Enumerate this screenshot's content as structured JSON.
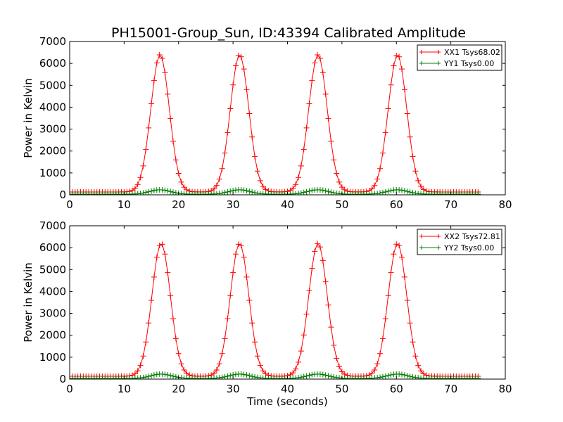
{
  "title": "PH15001-Group_Sun, ID:43394 Calibrated Amplitude",
  "chart_data": [
    {
      "type": "line",
      "panel": "top",
      "title": "PH15001-Group_Sun, ID:43394 Calibrated Amplitude",
      "ylabel": "Power in Kelvin",
      "xlabel": "",
      "xlim": [
        0,
        80
      ],
      "ylim": [
        0,
        7000
      ],
      "xticks": [
        0,
        10,
        20,
        30,
        40,
        50,
        60,
        70,
        80
      ],
      "yticks": [
        0,
        1000,
        2000,
        3000,
        4000,
        5000,
        6000,
        7000
      ],
      "legend_position": "top-right",
      "series": [
        {
          "name": "XX1 Tsys68.02",
          "color": "#ff0000",
          "marker": "plus",
          "baseline": 130,
          "peak": 6400,
          "peak_centers": [
            16.6,
            31.2,
            45.6,
            60.2
          ],
          "peak_sigma": 1.7,
          "x_range": [
            0,
            75
          ],
          "x_step": 0.5
        },
        {
          "name": "YY1 Tsys0.00",
          "color": "#008000",
          "marker": "plus",
          "baseline": 30,
          "peak": 230,
          "peak_centers": [
            16.6,
            31.2,
            45.6,
            60.2
          ],
          "peak_sigma": 1.9,
          "x_range": [
            0,
            75
          ],
          "x_step": 0.5
        }
      ]
    },
    {
      "type": "line",
      "panel": "bottom",
      "title": "",
      "ylabel": "Power in Kelvin",
      "xlabel": "Time (seconds)",
      "xlim": [
        0,
        80
      ],
      "ylim": [
        0,
        7000
      ],
      "xticks": [
        0,
        10,
        20,
        30,
        40,
        50,
        60,
        70,
        80
      ],
      "yticks": [
        0,
        1000,
        2000,
        3000,
        4000,
        5000,
        6000,
        7000
      ],
      "legend_position": "top-right",
      "series": [
        {
          "name": "XX2 Tsys72.81",
          "color": "#ff0000",
          "marker": "plus",
          "baseline": 130,
          "peak": 6200,
          "peak_centers": [
            16.8,
            31.2,
            45.6,
            60.2
          ],
          "peak_sigma": 1.7,
          "x_range": [
            0,
            75
          ],
          "x_step": 0.5
        },
        {
          "name": "YY2 Tsys0.00",
          "color": "#008000",
          "marker": "plus",
          "baseline": 30,
          "peak": 230,
          "peak_centers": [
            16.8,
            31.2,
            45.6,
            60.2
          ],
          "peak_sigma": 1.9,
          "x_range": [
            0,
            75
          ],
          "x_step": 0.5
        }
      ]
    }
  ]
}
